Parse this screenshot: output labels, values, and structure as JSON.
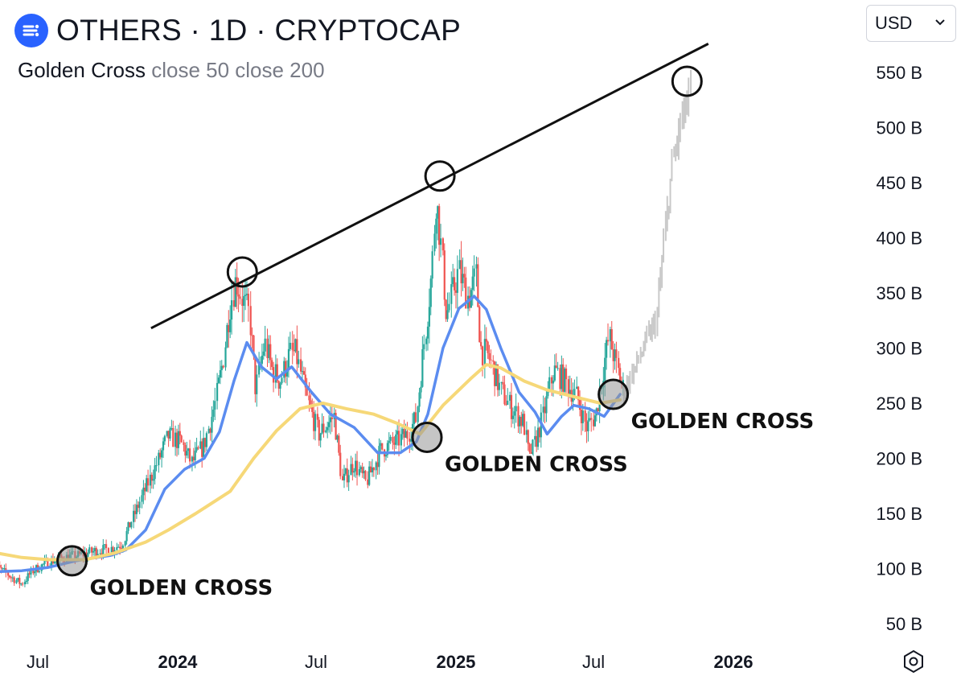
{
  "header": {
    "title": "OTHERS · 1D · CRYPTOCAP",
    "logo_icon": "cryptocap-logo-icon",
    "brand_color": "#2962ff"
  },
  "indicator": {
    "name": "Golden Cross",
    "params": "close 50 close 200"
  },
  "currency_select": {
    "value": "USD",
    "icon": "chevron-down-icon"
  },
  "settings": {
    "icon": "settings-hexagon-icon"
  },
  "chart_data": {
    "type": "line",
    "title": "OTHERS · 1D · CRYPTOCAP",
    "ylabel": "",
    "xlabel": "",
    "y_unit": "B",
    "ylim": [
      33,
      572
    ],
    "y_ticks": [
      "550 B",
      "500 B",
      "450 B",
      "400 B",
      "350 B",
      "300 B",
      "250 B",
      "200 B",
      "150 B",
      "100 B",
      "50 B"
    ],
    "y_tick_values": [
      550,
      500,
      450,
      400,
      350,
      300,
      250,
      200,
      150,
      100,
      50
    ],
    "x_ticks": [
      {
        "label": "Jul",
        "date": "2023-07-01",
        "bold": false
      },
      {
        "label": "2024",
        "date": "2024-01-01",
        "bold": true
      },
      {
        "label": "Jul",
        "date": "2024-07-01",
        "bold": false
      },
      {
        "label": "2025",
        "date": "2025-01-01",
        "bold": true
      },
      {
        "label": "Jul",
        "date": "2025-07-01",
        "bold": false
      },
      {
        "label": "2026",
        "date": "2026-01-01",
        "bold": true
      }
    ],
    "xlim": [
      "2023-05-01",
      "2026-03-01"
    ],
    "grid": false,
    "series": [
      {
        "kind": "price",
        "color_up": "#26a69a",
        "color_down": "#ef5350",
        "points": [
          [
            "2023-05-01",
            104
          ],
          [
            "2023-05-20",
            96
          ],
          [
            "2023-06-10",
            86
          ],
          [
            "2023-06-25",
            98
          ],
          [
            "2023-07-15",
            106
          ],
          [
            "2023-08-05",
            110
          ],
          [
            "2023-08-25",
            112
          ],
          [
            "2023-09-15",
            116
          ],
          [
            "2023-10-05",
            118
          ],
          [
            "2023-10-20",
            122
          ],
          [
            "2023-11-01",
            142
          ],
          [
            "2023-11-20",
            172
          ],
          [
            "2023-12-05",
            195
          ],
          [
            "2023-12-20",
            220
          ],
          [
            "2024-01-05",
            215
          ],
          [
            "2024-01-20",
            196
          ],
          [
            "2024-02-05",
            212
          ],
          [
            "2024-02-20",
            250
          ],
          [
            "2024-03-01",
            288
          ],
          [
            "2024-03-10",
            338
          ],
          [
            "2024-03-18",
            362
          ],
          [
            "2024-03-28",
            342
          ],
          [
            "2024-04-05",
            330
          ],
          [
            "2024-04-13",
            262
          ],
          [
            "2024-04-25",
            305
          ],
          [
            "2024-05-05",
            280
          ],
          [
            "2024-05-15",
            270
          ],
          [
            "2024-05-28",
            295
          ],
          [
            "2024-06-05",
            295
          ],
          [
            "2024-06-20",
            252
          ],
          [
            "2024-07-05",
            222
          ],
          [
            "2024-07-25",
            238
          ],
          [
            "2024-08-05",
            178
          ],
          [
            "2024-08-20",
            196
          ],
          [
            "2024-09-05",
            178
          ],
          [
            "2024-09-25",
            208
          ],
          [
            "2024-10-15",
            215
          ],
          [
            "2024-10-30",
            222
          ],
          [
            "2024-11-10",
            236
          ],
          [
            "2024-11-20",
            300
          ],
          [
            "2024-12-01",
            370
          ],
          [
            "2024-12-06",
            438
          ],
          [
            "2024-12-12",
            400
          ],
          [
            "2024-12-20",
            330
          ],
          [
            "2025-01-05",
            370
          ],
          [
            "2025-01-18",
            345
          ],
          [
            "2025-01-28",
            365
          ],
          [
            "2025-02-03",
            300
          ],
          [
            "2025-02-15",
            290
          ],
          [
            "2025-03-01",
            262
          ],
          [
            "2025-03-15",
            246
          ],
          [
            "2025-04-01",
            232
          ],
          [
            "2025-04-08",
            198
          ],
          [
            "2025-04-25",
            235
          ],
          [
            "2025-05-10",
            280
          ],
          [
            "2025-05-25",
            270
          ],
          [
            "2025-06-10",
            255
          ],
          [
            "2025-06-22",
            228
          ],
          [
            "2025-07-05",
            240
          ],
          [
            "2025-07-15",
            285
          ],
          [
            "2025-07-22",
            310
          ],
          [
            "2025-08-02",
            280
          ],
          [
            "2025-08-10",
            263
          ]
        ]
      },
      {
        "kind": "projection",
        "color": "#c9c9c9",
        "points": [
          [
            "2025-08-10",
            263
          ],
          [
            "2025-08-25",
            282
          ],
          [
            "2025-09-08",
            305
          ],
          [
            "2025-09-22",
            325
          ],
          [
            "2025-10-02",
            395
          ],
          [
            "2025-10-12",
            460
          ],
          [
            "2025-10-22",
            498
          ],
          [
            "2025-11-01",
            520
          ],
          [
            "2025-11-06",
            532
          ]
        ]
      },
      {
        "kind": "ma50",
        "color": "#5b8cf0",
        "points": [
          [
            "2023-05-01",
            97
          ],
          [
            "2023-06-10",
            98
          ],
          [
            "2023-07-15",
            101
          ],
          [
            "2023-08-20",
            107
          ],
          [
            "2023-10-05",
            112
          ],
          [
            "2023-10-25",
            117
          ],
          [
            "2023-11-20",
            135
          ],
          [
            "2023-12-15",
            172
          ],
          [
            "2024-01-10",
            190
          ],
          [
            "2024-02-05",
            200
          ],
          [
            "2024-02-25",
            224
          ],
          [
            "2024-03-15",
            270
          ],
          [
            "2024-04-01",
            305
          ],
          [
            "2024-04-20",
            283
          ],
          [
            "2024-05-10",
            272
          ],
          [
            "2024-05-30",
            283
          ],
          [
            "2024-06-25",
            260
          ],
          [
            "2024-07-20",
            240
          ],
          [
            "2024-08-20",
            228
          ],
          [
            "2024-09-20",
            205
          ],
          [
            "2024-10-20",
            205
          ],
          [
            "2024-11-10",
            215
          ],
          [
            "2024-11-25",
            240
          ],
          [
            "2024-12-15",
            300
          ],
          [
            "2025-01-05",
            336
          ],
          [
            "2025-01-25",
            347
          ],
          [
            "2025-02-10",
            335
          ],
          [
            "2025-03-01",
            300
          ],
          [
            "2025-03-25",
            260
          ],
          [
            "2025-04-15",
            242
          ],
          [
            "2025-05-01",
            222
          ],
          [
            "2025-05-20",
            238
          ],
          [
            "2025-06-05",
            248
          ],
          [
            "2025-06-25",
            245
          ],
          [
            "2025-07-15",
            238
          ],
          [
            "2025-08-05",
            258
          ]
        ]
      },
      {
        "kind": "ma200",
        "color": "#f6d878",
        "points": [
          [
            "2023-05-01",
            115
          ],
          [
            "2023-06-10",
            110
          ],
          [
            "2023-07-15",
            108
          ],
          [
            "2023-09-01",
            108
          ],
          [
            "2023-10-10",
            114
          ],
          [
            "2023-11-20",
            124
          ],
          [
            "2023-12-20",
            135
          ],
          [
            "2024-01-25",
            150
          ],
          [
            "2024-03-10",
            170
          ],
          [
            "2024-04-10",
            200
          ],
          [
            "2024-05-10",
            225
          ],
          [
            "2024-06-10",
            245
          ],
          [
            "2024-07-10",
            250
          ],
          [
            "2024-08-10",
            245
          ],
          [
            "2024-09-15",
            240
          ],
          [
            "2024-10-15",
            232
          ],
          [
            "2024-11-15",
            222
          ],
          [
            "2024-12-15",
            248
          ],
          [
            "2025-01-20",
            272
          ],
          [
            "2025-02-10",
            285
          ],
          [
            "2025-03-01",
            282
          ],
          [
            "2025-04-01",
            270
          ],
          [
            "2025-05-01",
            262
          ],
          [
            "2025-06-10",
            255
          ],
          [
            "2025-07-10",
            250
          ],
          [
            "2025-08-05",
            253
          ]
        ]
      }
    ],
    "trendline": {
      "color": "#111111",
      "points": [
        [
          "2023-11-27",
          318
        ],
        [
          "2025-11-29",
          576
        ]
      ]
    },
    "peak_markers": [
      {
        "date": "2024-03-26",
        "value": 369
      },
      {
        "date": "2024-12-11",
        "value": 456
      },
      {
        "date": "2025-11-01",
        "value": 542
      }
    ],
    "annotations": [
      {
        "text": "GOLDEN CROSS",
        "date": "2023-08-15",
        "value": 107
      },
      {
        "text": "GOLDEN CROSS",
        "date": "2024-11-24",
        "value": 219
      },
      {
        "text": "GOLDEN CROSS",
        "date": "2025-07-27",
        "value": 258
      }
    ]
  }
}
